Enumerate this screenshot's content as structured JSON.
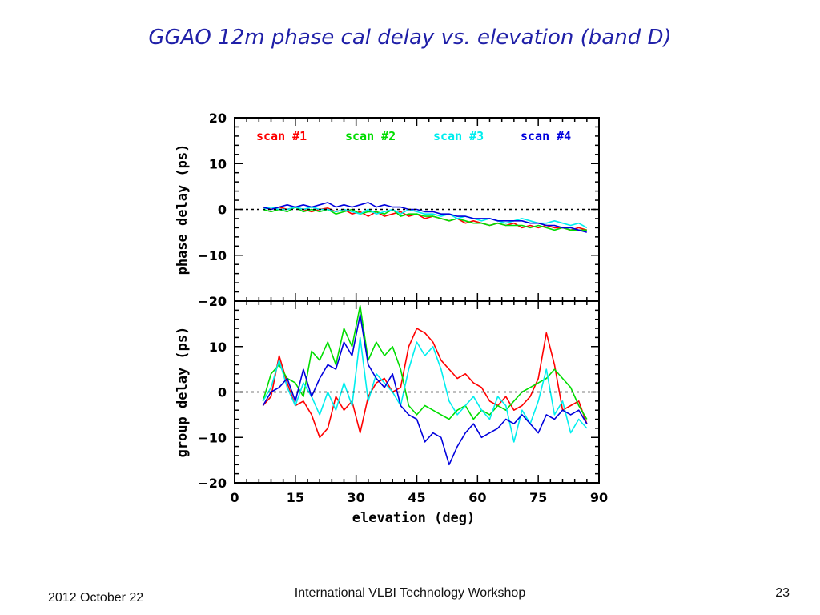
{
  "slide": {
    "title": "GGAO 12m phase cal delay vs. elevation (band D)",
    "footer_date": "2012 October 22",
    "footer_center": "International VLBI Technology Workshop",
    "page_number": "23"
  },
  "chart_data": {
    "type": "line",
    "xlabel": "elevation (deg)",
    "xlim": [
      0,
      90
    ],
    "xticks": [
      0,
      15,
      30,
      45,
      60,
      75,
      90
    ],
    "panels": [
      {
        "name": "phase",
        "ylabel": "phase delay (ps)",
        "ylim": [
          -20,
          20
        ],
        "yticks": [
          -20,
          -10,
          0,
          10,
          20
        ],
        "zero_line": true,
        "series": [
          {
            "name": "scan #1",
            "color": "#ff0000",
            "x": [
              7,
              9,
              11,
              13,
              15,
              17,
              19,
              21,
              23,
              25,
              27,
              29,
              31,
              33,
              35,
              37,
              39,
              41,
              43,
              45,
              47,
              49,
              51,
              53,
              55,
              57,
              59,
              61,
              63,
              65,
              67,
              69,
              71,
              73,
              75,
              77,
              79,
              81,
              83,
              85,
              87
            ],
            "y": [
              0.5,
              0,
              0.5,
              0,
              0.5,
              0,
              -0.5,
              0,
              0.3,
              -0.5,
              0,
              -1,
              -0.5,
              -1.5,
              -0.5,
              -1.5,
              -1,
              -0.5,
              -1.5,
              -1,
              -2,
              -1.5,
              -2,
              -2.5,
              -2,
              -3,
              -2.5,
              -3,
              -3.5,
              -3,
              -3.5,
              -3,
              -4,
              -3.5,
              -4,
              -3.5,
              -4,
              -4,
              -4.5,
              -4,
              -4.5
            ]
          },
          {
            "name": "scan #2",
            "color": "#00dd00",
            "x": [
              7,
              9,
              11,
              13,
              15,
              17,
              19,
              21,
              23,
              25,
              27,
              29,
              31,
              33,
              35,
              37,
              39,
              41,
              43,
              45,
              47,
              49,
              51,
              53,
              55,
              57,
              59,
              61,
              63,
              65,
              67,
              69,
              71,
              73,
              75,
              77,
              79,
              81,
              83,
              85,
              87
            ],
            "y": [
              0,
              -0.5,
              0,
              -0.5,
              0.5,
              -0.5,
              0,
              -0.5,
              0,
              -1,
              -0.5,
              0,
              -1,
              -0.5,
              -0.5,
              -1,
              0,
              -1.5,
              -1,
              -1,
              -1.5,
              -1.5,
              -2,
              -2.5,
              -2,
              -2.5,
              -3,
              -3,
              -3.5,
              -3,
              -3.5,
              -3.5,
              -3.5,
              -4,
              -3.5,
              -4,
              -4.5,
              -4,
              -4.5,
              -4.5,
              -4.5
            ]
          },
          {
            "name": "scan #3",
            "color": "#00eeee",
            "x": [
              7,
              9,
              11,
              13,
              15,
              17,
              19,
              21,
              23,
              25,
              27,
              29,
              31,
              33,
              35,
              37,
              39,
              41,
              43,
              45,
              47,
              49,
              51,
              53,
              55,
              57,
              59,
              61,
              63,
              65,
              67,
              69,
              71,
              73,
              75,
              77,
              79,
              81,
              83,
              85,
              87
            ],
            "y": [
              0,
              0.5,
              0,
              0,
              0.5,
              0,
              0.5,
              0,
              0,
              -0.5,
              0,
              -0.5,
              -1,
              0,
              -1,
              -0.5,
              0,
              -1,
              0,
              -0.5,
              -1,
              -1,
              -1.5,
              -1,
              -2,
              -1.5,
              -2,
              -2.5,
              -2,
              -2.5,
              -3,
              -2.5,
              -2,
              -2.5,
              -3,
              -3,
              -2.5,
              -3,
              -3.5,
              -3,
              -4
            ]
          },
          {
            "name": "scan #4",
            "color": "#0000dd",
            "x": [
              7,
              9,
              11,
              13,
              15,
              17,
              19,
              21,
              23,
              25,
              27,
              29,
              31,
              33,
              35,
              37,
              39,
              41,
              43,
              45,
              47,
              49,
              51,
              53,
              55,
              57,
              59,
              61,
              63,
              65,
              67,
              69,
              71,
              73,
              75,
              77,
              79,
              81,
              83,
              85,
              87
            ],
            "y": [
              0.5,
              0,
              0.5,
              1,
              0.5,
              1,
              0.5,
              1,
              1.5,
              0.5,
              1,
              0.5,
              1,
              1.5,
              0.5,
              1,
              0.5,
              0.5,
              0,
              0,
              -0.5,
              -0.5,
              -1,
              -1,
              -1.5,
              -1.5,
              -2,
              -2,
              -2,
              -2.5,
              -2.5,
              -2.5,
              -2.5,
              -3,
              -3,
              -3.5,
              -3.5,
              -4,
              -4,
              -4.5,
              -5
            ]
          }
        ]
      },
      {
        "name": "group",
        "ylabel": "group delay (ps)",
        "ylim": [
          -20,
          20
        ],
        "yticks": [
          -20,
          -10,
          0,
          10,
          20
        ],
        "zero_line": true,
        "series": [
          {
            "name": "scan #1",
            "color": "#ff0000",
            "x": [
              7,
              9,
              11,
              13,
              15,
              17,
              19,
              21,
              23,
              25,
              27,
              29,
              31,
              33,
              35,
              37,
              39,
              41,
              43,
              45,
              47,
              49,
              51,
              53,
              55,
              57,
              59,
              61,
              63,
              65,
              67,
              69,
              71,
              73,
              75,
              77,
              79,
              81,
              83,
              85,
              87
            ],
            "y": [
              -3,
              -1,
              8,
              2,
              -3,
              -2,
              -5,
              -10,
              -8,
              -1,
              -4,
              -2,
              -9,
              -1,
              2,
              3,
              0,
              1,
              10,
              14,
              13,
              11,
              7,
              5,
              3,
              4,
              2,
              1,
              -2,
              -3,
              -1,
              -4,
              -3,
              -1,
              3,
              13,
              6,
              -4,
              -3,
              -2,
              -7
            ]
          },
          {
            "name": "scan #2",
            "color": "#00dd00",
            "x": [
              7,
              9,
              11,
              13,
              15,
              17,
              19,
              21,
              23,
              25,
              27,
              29,
              31,
              33,
              35,
              37,
              39,
              41,
              43,
              45,
              47,
              49,
              51,
              53,
              55,
              57,
              59,
              61,
              63,
              65,
              67,
              69,
              71,
              73,
              75,
              77,
              79,
              81,
              83,
              85,
              87
            ],
            "y": [
              -2,
              4,
              6,
              3,
              2,
              -1,
              9,
              7,
              11,
              6,
              14,
              10,
              19,
              7,
              11,
              8,
              10,
              5,
              -3,
              -5,
              -3,
              -4,
              -5,
              -6,
              -4,
              -3,
              -6,
              -4,
              -5,
              -3,
              -4,
              -2,
              0,
              1,
              2,
              3,
              5,
              3,
              1,
              -3,
              -6
            ]
          },
          {
            "name": "scan #3",
            "color": "#00eeee",
            "x": [
              7,
              9,
              11,
              13,
              15,
              17,
              19,
              21,
              23,
              25,
              27,
              29,
              31,
              33,
              35,
              37,
              39,
              41,
              43,
              45,
              47,
              49,
              51,
              53,
              55,
              57,
              59,
              61,
              63,
              65,
              67,
              69,
              71,
              73,
              75,
              77,
              79,
              81,
              83,
              85,
              87
            ],
            "y": [
              -2,
              1,
              7,
              1,
              -3,
              2,
              -1,
              -5,
              0,
              -4,
              2,
              -3,
              12,
              -2,
              4,
              2,
              0,
              -3,
              5,
              11,
              8,
              10,
              5,
              -2,
              -5,
              -3,
              -1,
              -4,
              -6,
              -1,
              -3,
              -11,
              -4,
              -7,
              -2,
              5,
              -5,
              -2,
              -9,
              -6,
              -8
            ]
          },
          {
            "name": "scan #4",
            "color": "#0000dd",
            "x": [
              7,
              9,
              11,
              13,
              15,
              17,
              19,
              21,
              23,
              25,
              27,
              29,
              31,
              33,
              35,
              37,
              39,
              41,
              43,
              45,
              47,
              49,
              51,
              53,
              55,
              57,
              59,
              61,
              63,
              65,
              67,
              69,
              71,
              73,
              75,
              77,
              79,
              81,
              83,
              85,
              87
            ],
            "y": [
              -3,
              0,
              1,
              3,
              -2,
              5,
              -1,
              3,
              6,
              5,
              11,
              8,
              17,
              6,
              3,
              1,
              4,
              -3,
              -5,
              -6,
              -11,
              -9,
              -10,
              -16,
              -12,
              -9,
              -7,
              -10,
              -9,
              -8,
              -6,
              -7,
              -5,
              -7,
              -9,
              -5,
              -6,
              -4,
              -5,
              -4,
              -7
            ]
          }
        ]
      }
    ]
  }
}
